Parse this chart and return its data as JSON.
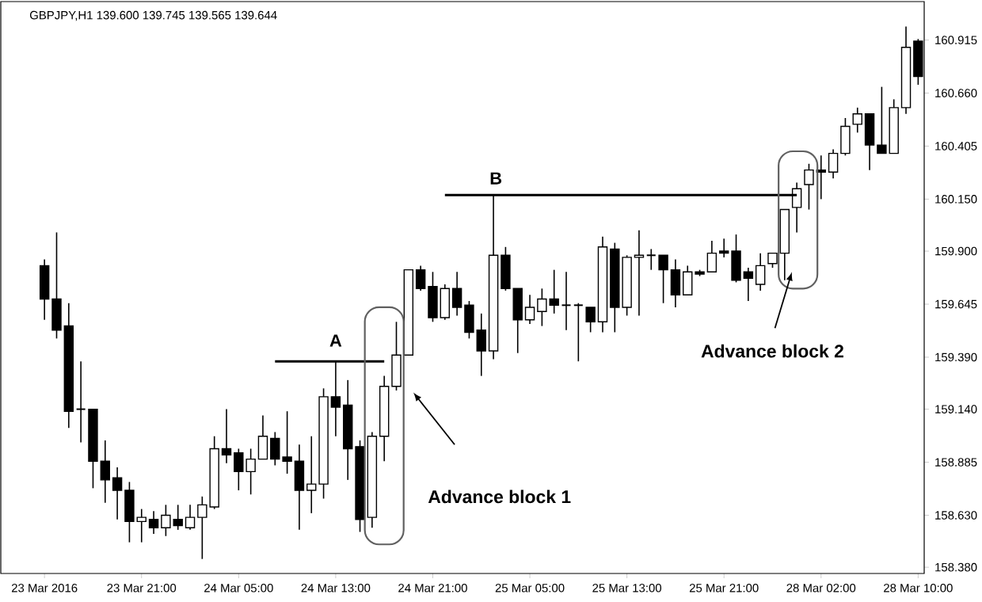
{
  "chart_data": {
    "type": "candlestick",
    "title": "GBPJPY,H1 139.600 139.745 139.565 139.644",
    "categories": [
      "23 Mar 2016",
      null,
      null,
      null,
      null,
      null,
      null,
      null,
      "23 Mar 21:00",
      null,
      null,
      null,
      null,
      null,
      null,
      null,
      "24 Mar 05:00",
      null,
      null,
      null,
      null,
      null,
      null,
      null,
      "24 Mar 13:00",
      null,
      null,
      null,
      null,
      null,
      null,
      null,
      "24 Mar 21:00",
      null,
      null,
      null,
      null,
      null,
      null,
      null,
      "25 Mar 05:00",
      null,
      null,
      null,
      null,
      null,
      null,
      null,
      "25 Mar 13:00",
      null,
      null,
      null,
      null,
      null,
      null,
      null,
      "25 Mar 21:00",
      null,
      null,
      null,
      null,
      null,
      null,
      null,
      "28 Mar 02:00",
      null,
      null,
      null,
      null,
      null,
      null,
      null,
      "28 Mar 10:00"
    ],
    "ohlc": [
      [
        159.83,
        159.86,
        159.57,
        159.67
      ],
      [
        159.67,
        159.99,
        159.48,
        159.52
      ],
      [
        159.54,
        159.65,
        159.05,
        159.13
      ],
      [
        159.14,
        159.37,
        158.98,
        159.14
      ],
      [
        159.14,
        159.14,
        158.76,
        158.89
      ],
      [
        158.89,
        158.99,
        158.69,
        158.8
      ],
      [
        158.81,
        158.86,
        158.61,
        158.75
      ],
      [
        158.75,
        158.79,
        158.5,
        158.6
      ],
      [
        158.6,
        158.66,
        158.5,
        158.62
      ],
      [
        158.61,
        158.65,
        158.54,
        158.57
      ],
      [
        158.57,
        158.68,
        158.53,
        158.63
      ],
      [
        158.61,
        158.68,
        158.56,
        158.58
      ],
      [
        158.57,
        158.68,
        158.56,
        158.62
      ],
      [
        158.62,
        158.72,
        158.42,
        158.68
      ],
      [
        158.67,
        159.01,
        158.66,
        158.95
      ],
      [
        158.95,
        159.14,
        158.88,
        158.92
      ],
      [
        158.93,
        158.95,
        158.75,
        158.84
      ],
      [
        158.84,
        158.95,
        158.73,
        158.9
      ],
      [
        158.9,
        159.11,
        158.9,
        159.01
      ],
      [
        159.0,
        159.03,
        158.87,
        158.9
      ],
      [
        158.91,
        159.13,
        158.83,
        158.89
      ],
      [
        158.89,
        158.97,
        158.56,
        158.75
      ],
      [
        158.75,
        159.01,
        158.64,
        158.78
      ],
      [
        158.78,
        159.24,
        158.71,
        159.2
      ],
      [
        159.2,
        159.37,
        159.01,
        159.15
      ],
      [
        159.16,
        159.28,
        158.8,
        158.95
      ],
      [
        158.96,
        158.99,
        158.55,
        158.61
      ],
      [
        158.62,
        159.03,
        158.57,
        159.01
      ],
      [
        159.01,
        159.3,
        158.89,
        159.25
      ],
      [
        159.25,
        159.56,
        159.23,
        159.4
      ],
      [
        159.4,
        159.81,
        159.4,
        159.81
      ],
      [
        159.81,
        159.83,
        159.71,
        159.72
      ],
      [
        159.73,
        159.8,
        159.56,
        159.58
      ],
      [
        159.58,
        159.74,
        159.57,
        159.72
      ],
      [
        159.72,
        159.8,
        159.59,
        159.63
      ],
      [
        159.64,
        159.66,
        159.48,
        159.51
      ],
      [
        159.52,
        159.6,
        159.3,
        159.42
      ],
      [
        159.42,
        160.17,
        159.38,
        159.88
      ],
      [
        159.88,
        159.92,
        159.71,
        159.72
      ],
      [
        159.72,
        159.72,
        159.41,
        159.57
      ],
      [
        159.57,
        159.69,
        159.55,
        159.63
      ],
      [
        159.61,
        159.72,
        159.54,
        159.67
      ],
      [
        159.67,
        159.81,
        159.6,
        159.64
      ],
      [
        159.64,
        159.8,
        159.52,
        159.64
      ],
      [
        159.64,
        159.65,
        159.37,
        159.64
      ],
      [
        159.63,
        159.63,
        159.51,
        159.56
      ],
      [
        159.56,
        159.97,
        159.51,
        159.92
      ],
      [
        159.91,
        159.94,
        159.51,
        159.63
      ],
      [
        159.63,
        159.88,
        159.59,
        159.87
      ],
      [
        159.87,
        160.0,
        159.59,
        159.88
      ],
      [
        159.88,
        159.91,
        159.81,
        159.88
      ],
      [
        159.88,
        159.88,
        159.65,
        159.81
      ],
      [
        159.81,
        159.86,
        159.63,
        159.69
      ],
      [
        159.69,
        159.83,
        159.69,
        159.8
      ],
      [
        159.8,
        159.81,
        159.78,
        159.79
      ],
      [
        159.8,
        159.95,
        159.8,
        159.89
      ],
      [
        159.9,
        159.96,
        159.87,
        159.89
      ],
      [
        159.9,
        159.98,
        159.75,
        159.76
      ],
      [
        159.8,
        159.82,
        159.66,
        159.77
      ],
      [
        159.74,
        159.89,
        159.71,
        159.83
      ],
      [
        159.84,
        159.89,
        159.82,
        159.89
      ],
      [
        159.89,
        160.1,
        159.76,
        160.1
      ],
      [
        160.11,
        160.23,
        159.99,
        160.2
      ],
      [
        160.22,
        160.32,
        160.1,
        160.29
      ],
      [
        160.29,
        160.36,
        160.15,
        160.28
      ],
      [
        160.28,
        160.39,
        160.25,
        160.37
      ],
      [
        160.37,
        160.54,
        160.36,
        160.5
      ],
      [
        160.51,
        160.59,
        160.47,
        160.56
      ],
      [
        160.56,
        160.56,
        160.29,
        160.41
      ],
      [
        160.41,
        160.69,
        160.37,
        160.37
      ],
      [
        160.37,
        160.63,
        160.37,
        160.59
      ],
      [
        160.59,
        160.98,
        160.56,
        160.88
      ],
      [
        160.91,
        160.92,
        160.7,
        160.74
      ]
    ],
    "series": [
      {
        "type": "line",
        "color": "#000000",
        "values": [
          null,
          null,
          null,
          null,
          null,
          null,
          null,
          null,
          null,
          null,
          null,
          null,
          null,
          null,
          null,
          null,
          null,
          null,
          null,
          159.37,
          159.37,
          159.37,
          159.37,
          159.37,
          159.37,
          159.37,
          159.37,
          159.37,
          159.37,
          null,
          null,
          null,
          null,
          null,
          null,
          null,
          null,
          null,
          null,
          null,
          null,
          null,
          null,
          null,
          null,
          null,
          null,
          null,
          null,
          null,
          null,
          null,
          null,
          null,
          null,
          null,
          null,
          null,
          null,
          null,
          null,
          null,
          null,
          null,
          null,
          null,
          null,
          null,
          null,
          null,
          null,
          null,
          null
        ]
      },
      {
        "type": "line",
        "color": "#000000",
        "values": [
          null,
          null,
          null,
          null,
          null,
          null,
          null,
          null,
          null,
          null,
          null,
          null,
          null,
          null,
          null,
          null,
          null,
          null,
          null,
          null,
          null,
          null,
          null,
          null,
          null,
          null,
          null,
          null,
          null,
          null,
          null,
          null,
          null,
          160.17,
          160.17,
          160.17,
          160.17,
          160.17,
          160.17,
          160.17,
          160.17,
          160.17,
          160.17,
          160.17,
          160.17,
          160.17,
          160.17,
          160.17,
          160.17,
          160.17,
          160.17,
          160.17,
          160.17,
          160.17,
          160.17,
          160.17,
          160.17,
          160.17,
          160.17,
          160.17,
          160.17,
          160.17,
          160.17,
          null,
          null,
          null,
          null,
          null,
          null,
          null,
          null,
          null,
          null
        ]
      }
    ],
    "ylim": [
      158.35,
      161.1
    ],
    "yticks": [
      {
        "value": 158.38,
        "label": "158.380"
      },
      {
        "value": 158.63,
        "label": "158.630"
      },
      158.885,
      {
        "value": 159.14,
        "label": "159.140"
      },
      {
        "value": 159.39,
        "label": "159.390"
      },
      159.645,
      {
        "value": 159.9,
        "label": "159.900"
      },
      {
        "value": 160.15,
        "label": "160.150"
      },
      160.405,
      {
        "value": 160.66,
        "label": "160.660"
      },
      160.915
    ],
    "annotations": [
      "A",
      "B",
      "Advance block 1",
      "Advance block 2"
    ]
  }
}
